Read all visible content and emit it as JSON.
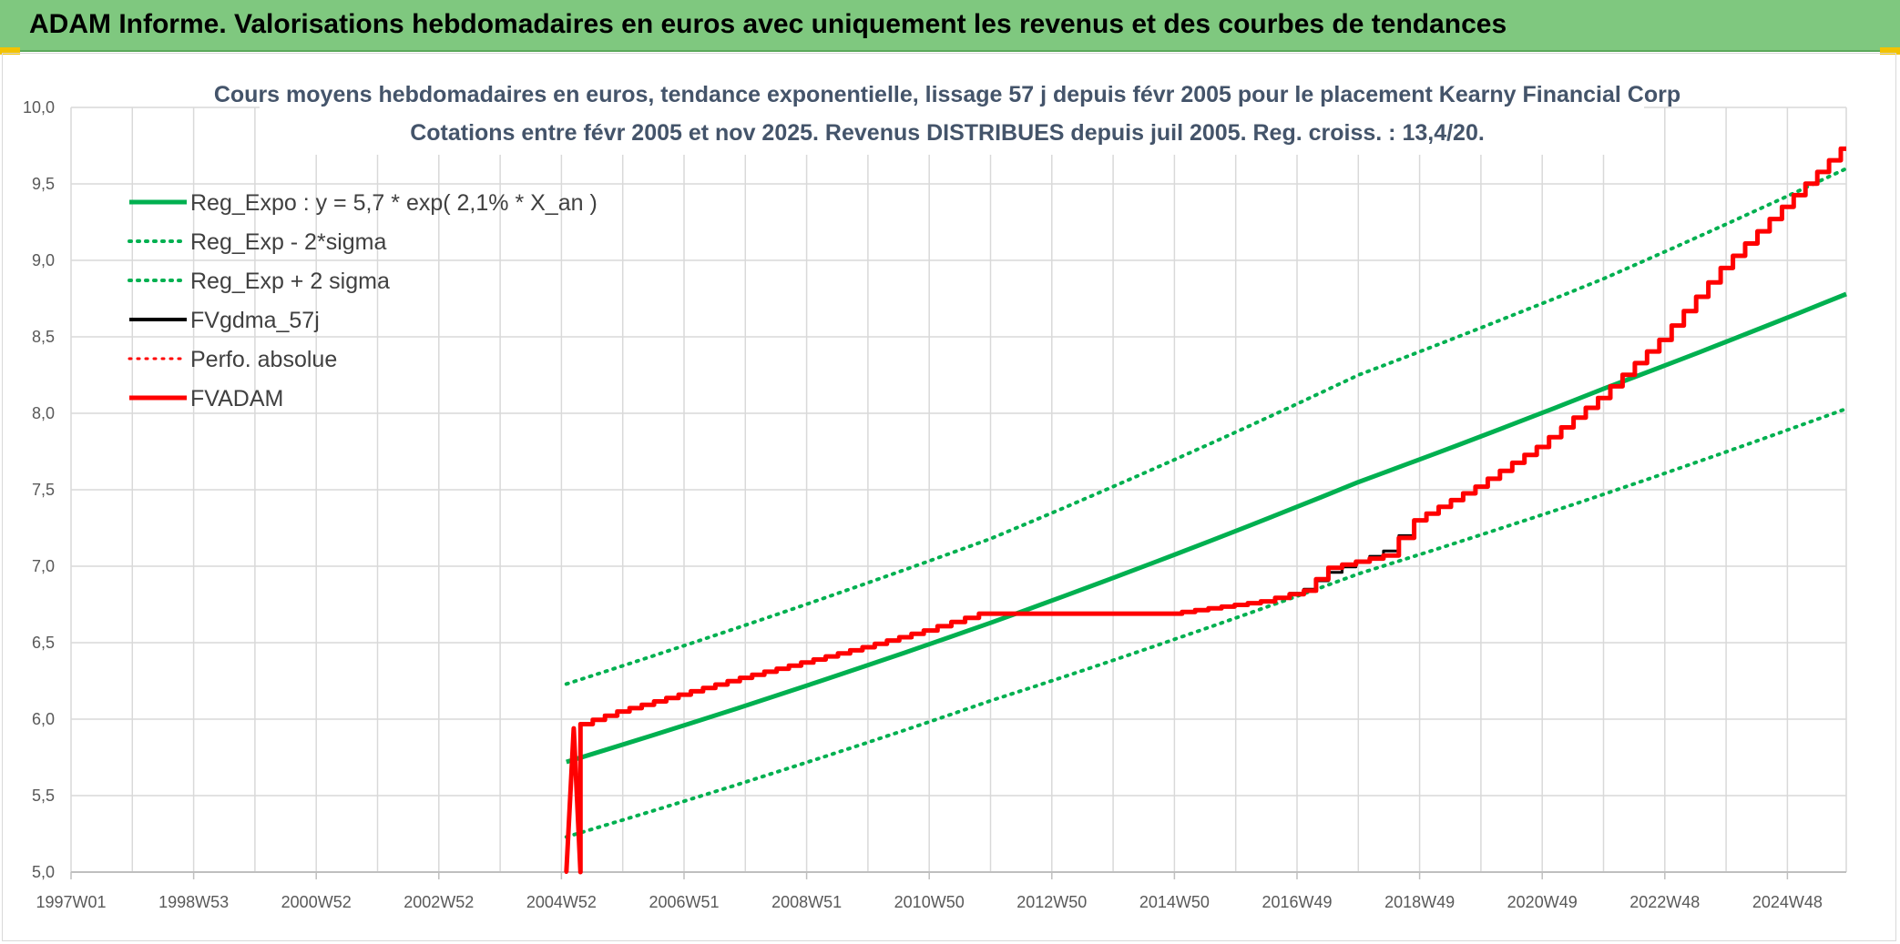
{
  "header": {
    "title": "ADAM Informe. Valorisations hebdomadaires en euros avec uniquement les revenus et des courbes de tendances"
  },
  "colors": {
    "banner": "#7fc87f",
    "green": "#00b050",
    "red": "#ff0000",
    "black": "#000000",
    "grid": "#d9d9d9"
  },
  "chart_data": {
    "type": "line",
    "title": "Cours moyens hebdomadaires en euros, tendance exponentielle, lissage 57 j depuis févr 2005 pour le placement Kearny Financial Corp",
    "subtitle": "Cotations entre févr 2005 et nov 2025. Revenus DISTRIBUES depuis juil 2005. Reg. croiss. : 13,4/20.",
    "x_tick_labels": [
      "1997W01",
      "1998W53",
      "2000W52",
      "2002W52",
      "2004W52",
      "2006W51",
      "2008W51",
      "2010W50",
      "2012W50",
      "2014W50",
      "2016W49",
      "2018W49",
      "2020W49",
      "2022W48",
      "2024W48"
    ],
    "x_range": [
      1997.0,
      2025.96
    ],
    "ylim": [
      5.0,
      10.0
    ],
    "y_ticks": [
      "5,0",
      "5,5",
      "6,0",
      "6,5",
      "7,0",
      "7,5",
      "8,0",
      "8,5",
      "9,0",
      "9,5",
      "10,0"
    ],
    "grid": true,
    "legend_position": "top-left",
    "legend": [
      {
        "label": "Reg_Expo : y = 5,7 * exp( 2,1% *  X_an )",
        "color": "#00b050",
        "style": "solid",
        "width": 5
      },
      {
        "label": "Reg_Exp - 2*sigma",
        "color": "#00b050",
        "style": "dotted",
        "width": 4
      },
      {
        "label": "Reg_Exp + 2 sigma",
        "color": "#00b050",
        "style": "dotted",
        "width": 4
      },
      {
        "label": "FVgdma_57j",
        "color": "#000000",
        "style": "solid",
        "width": 4
      },
      {
        "label": "Perfo. absolue",
        "color": "#ff0000",
        "style": "dotted",
        "width": 3
      },
      {
        "label": "FVADAM",
        "color": "#ff0000",
        "style": "solid",
        "width": 5
      }
    ],
    "series": [
      {
        "name": "Reg_Expo : y = 5,7 * exp( 2,1% *  X_an )",
        "color": "#00b050",
        "style": "solid",
        "x": [
          2005.08,
          2012.0,
          2018.0,
          2022.0,
          2025.96
        ],
        "y": [
          5.72,
          6.63,
          7.55,
          8.16,
          8.78
        ]
      },
      {
        "name": "Reg_Exp - 2*sigma",
        "color": "#00b050",
        "style": "dotted",
        "x": [
          2005.08,
          2012.0,
          2018.0,
          2022.0,
          2025.96
        ],
        "y": [
          5.23,
          6.12,
          6.95,
          7.47,
          8.03
        ]
      },
      {
        "name": "Reg_Exp + 2 sigma",
        "color": "#00b050",
        "style": "dotted",
        "x": [
          2005.08,
          2012.0,
          2018.0,
          2022.0,
          2025.96
        ],
        "y": [
          6.23,
          7.18,
          8.25,
          8.88,
          9.6
        ]
      },
      {
        "name": "FVgdma_57j",
        "color": "#000000",
        "style": "solid",
        "x": [
          2005.08,
          2005.2,
          2006.0,
          2008.0,
          2010.0,
          2011.0,
          2011.9,
          2014.0,
          2015.0,
          2016.5,
          2017.2,
          2017.6,
          2018.5,
          2019.0,
          2020.0,
          2021.0,
          2022.0,
          2023.0,
          2024.0,
          2025.0,
          2025.96
        ],
        "y": [
          5.0,
          5.94,
          6.05,
          6.27,
          6.47,
          6.58,
          6.69,
          6.69,
          6.69,
          6.77,
          6.85,
          6.96,
          7.1,
          7.3,
          7.52,
          7.78,
          8.1,
          8.48,
          8.95,
          9.35,
          9.73
        ]
      },
      {
        "name": "Perfo. absolue",
        "color": "#ff0000",
        "style": "dotted",
        "x": [
          2005.08,
          2005.2,
          2006.0,
          2008.0,
          2010.0,
          2011.0,
          2011.9,
          2014.0,
          2015.0,
          2016.5,
          2017.2,
          2017.6,
          2018.5,
          2019.0,
          2020.0,
          2021.0,
          2022.0,
          2023.0,
          2024.0,
          2025.0,
          2025.96
        ],
        "y": [
          5.0,
          5.94,
          6.05,
          6.27,
          6.47,
          6.58,
          6.69,
          6.69,
          6.69,
          6.77,
          6.84,
          6.99,
          7.07,
          7.3,
          7.52,
          7.78,
          8.1,
          8.48,
          8.95,
          9.35,
          9.73
        ]
      },
      {
        "name": "FVADAM",
        "color": "#ff0000",
        "style": "solid",
        "x": [
          2005.08,
          2005.2,
          2006.0,
          2008.0,
          2010.0,
          2011.0,
          2011.9,
          2014.0,
          2015.0,
          2016.5,
          2017.2,
          2017.6,
          2018.5,
          2019.0,
          2020.0,
          2021.0,
          2022.0,
          2023.0,
          2024.0,
          2025.0,
          2025.96
        ],
        "y": [
          5.0,
          5.94,
          6.05,
          6.27,
          6.47,
          6.58,
          6.69,
          6.69,
          6.69,
          6.77,
          6.84,
          6.99,
          7.07,
          7.3,
          7.52,
          7.78,
          8.1,
          8.48,
          8.95,
          9.35,
          9.73
        ]
      }
    ]
  }
}
